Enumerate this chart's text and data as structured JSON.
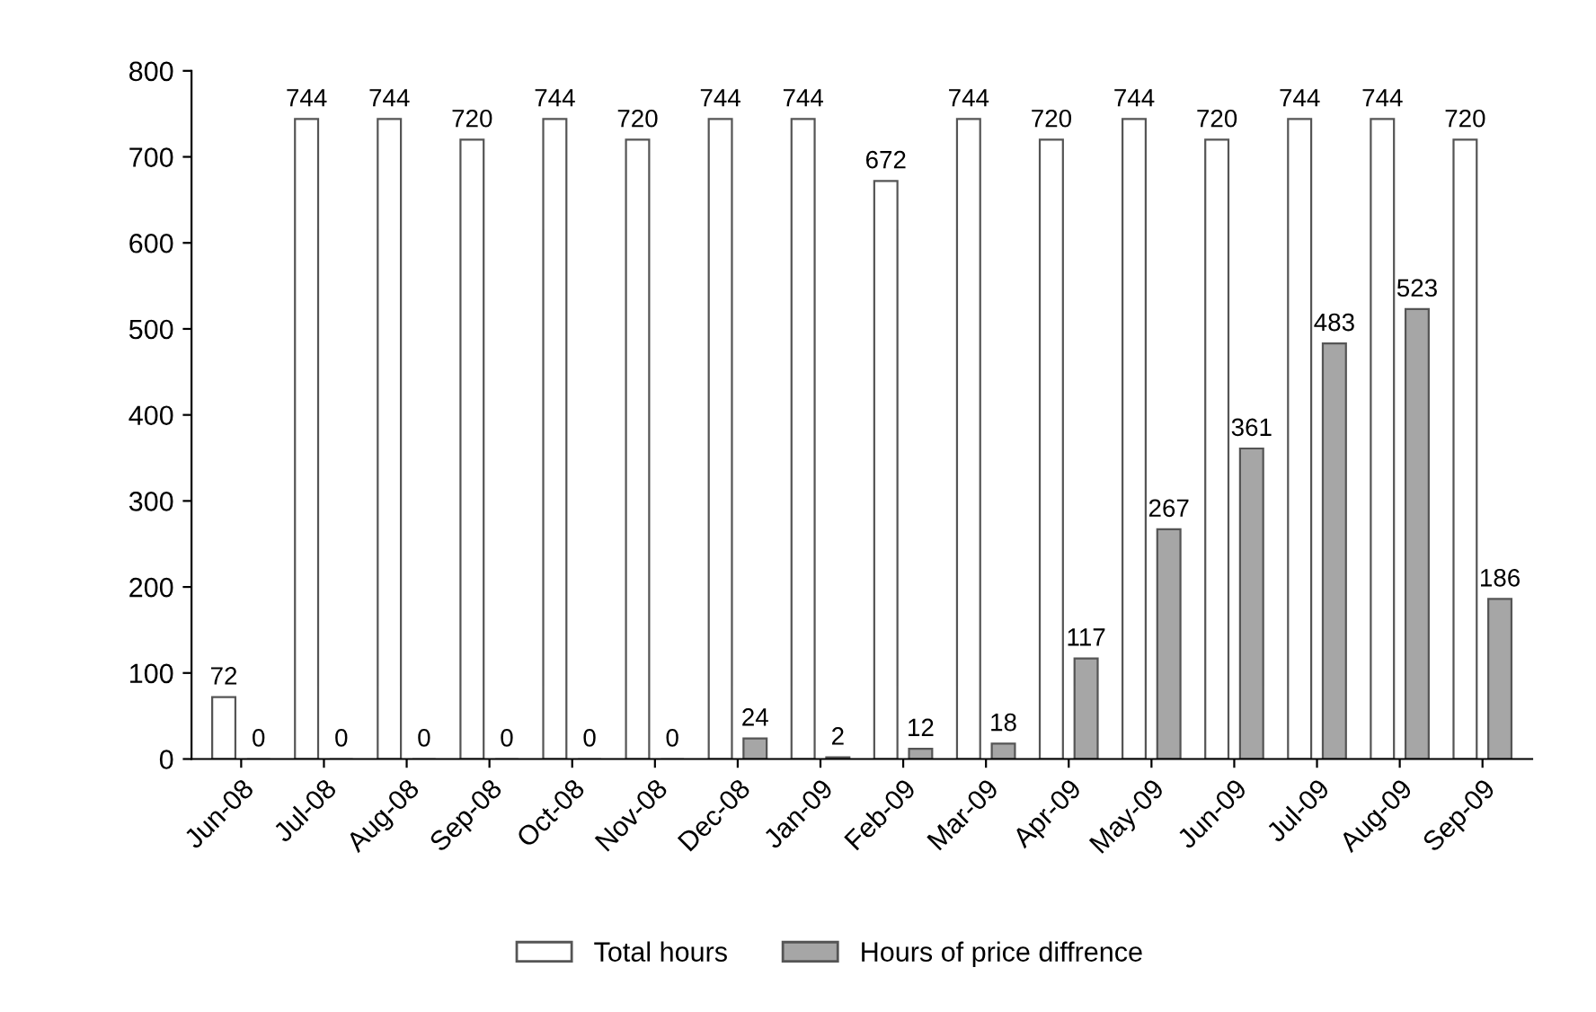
{
  "chart_data": {
    "type": "bar",
    "categories": [
      "Jun-08",
      "Jul-08",
      "Aug-08",
      "Sep-08",
      "Oct-08",
      "Nov-08",
      "Dec-08",
      "Jan-09",
      "Feb-09",
      "Mar-09",
      "Apr-09",
      "May-09",
      "Jun-09",
      "Jul-09",
      "Aug-09",
      "Sep-09"
    ],
    "series": [
      {
        "name": "Total hours",
        "color": "#ffffff",
        "values": [
          72,
          744,
          744,
          720,
          744,
          720,
          744,
          744,
          672,
          744,
          720,
          744,
          720,
          744,
          744,
          720
        ]
      },
      {
        "name": "Hours of price diffrence",
        "color": "#a6a6a6",
        "values": [
          0,
          0,
          0,
          0,
          0,
          0,
          24,
          2,
          12,
          18,
          117,
          267,
          361,
          483,
          523,
          186
        ]
      }
    ],
    "ylim": [
      0,
      800
    ],
    "yticks": [
      0,
      100,
      200,
      300,
      400,
      500,
      600,
      700,
      800
    ],
    "data_labels": true,
    "legend": "bottom",
    "grid": false
  }
}
